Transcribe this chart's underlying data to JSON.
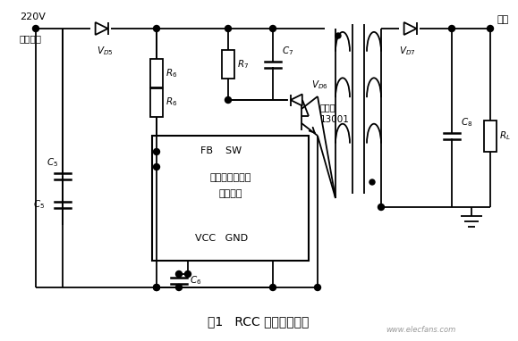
{
  "title": "图1   RCC 典型应用电路",
  "background_color": "#ffffff",
  "line_color": "#000000",
  "fig_width": 5.79,
  "fig_height": 3.82,
  "dpi": 100,
  "ic_texts": [
    "FB    SW",
    "反激式开关电源",
    "集成电路",
    "VCC   GND"
  ],
  "input_label_1": "220V",
  "input_label_2": "交流输入",
  "output_label": "输出",
  "transistor_label_1": "功率管",
  "transistor_label_2": "13001",
  "watermark": "www.elecfans.com"
}
